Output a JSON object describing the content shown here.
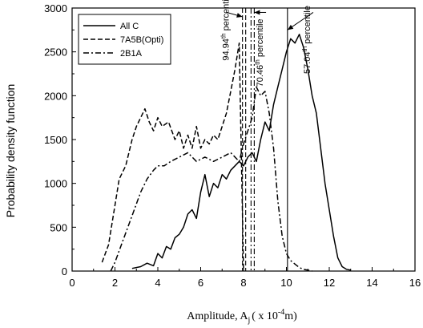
{
  "chart_data": {
    "type": "line",
    "xlabel": "Amplitude, A",
    "xlabel_sub": "j",
    "xlabel_unit": "( x 10",
    "xlabel_exp": "-4",
    "xlabel_tail": "m)",
    "ylabel": "Probability density function",
    "xlim": [
      0,
      16
    ],
    "ylim": [
      0,
      3000
    ],
    "xticks": [
      "0",
      "2",
      "4",
      "6",
      "8",
      "10",
      "12",
      "14",
      "16"
    ],
    "yticks": [
      "0",
      "500",
      "1000",
      "1500",
      "2000",
      "2500",
      "3000"
    ],
    "legend_position": "top-left",
    "series": [
      {
        "name": "All C",
        "dash": "solid",
        "x": [
          2.8,
          3.2,
          3.5,
          3.8,
          4.0,
          4.2,
          4.4,
          4.6,
          4.8,
          5.0,
          5.2,
          5.4,
          5.6,
          5.8,
          6.0,
          6.2,
          6.4,
          6.6,
          6.8,
          7.0,
          7.2,
          7.4,
          7.6,
          7.8,
          8.0,
          8.2,
          8.4,
          8.6,
          8.8,
          9.0,
          9.2,
          9.4,
          9.6,
          9.8,
          10.0,
          10.2,
          10.4,
          10.6,
          10.8,
          11.0,
          11.2,
          11.4,
          11.6,
          11.8,
          12.0,
          12.2,
          12.4,
          12.6,
          12.8,
          13.0
        ],
        "y": [
          30,
          50,
          90,
          60,
          200,
          150,
          280,
          250,
          380,
          420,
          500,
          650,
          700,
          600,
          900,
          1100,
          850,
          1000,
          950,
          1100,
          1050,
          1150,
          1200,
          1250,
          1200,
          1300,
          1350,
          1250,
          1500,
          1700,
          1600,
          1900,
          2100,
          2300,
          2500,
          2650,
          2600,
          2700,
          2550,
          2300,
          2000,
          1800,
          1400,
          1000,
          700,
          400,
          150,
          50,
          20,
          10
        ]
      },
      {
        "name": "7A5B(Opti)",
        "dash": "dashed",
        "x": [
          1.4,
          1.7,
          2.0,
          2.2,
          2.5,
          2.8,
          3.0,
          3.2,
          3.4,
          3.6,
          3.8,
          4.0,
          4.2,
          4.5,
          4.8,
          5.0,
          5.2,
          5.4,
          5.6,
          5.8,
          6.0,
          6.2,
          6.4,
          6.6,
          6.8,
          7.0,
          7.2,
          7.4,
          7.6,
          7.8,
          8.0
        ],
        "y": [
          100,
          300,
          750,
          1050,
          1200,
          1500,
          1650,
          1750,
          1850,
          1700,
          1600,
          1750,
          1650,
          1700,
          1500,
          1600,
          1400,
          1550,
          1400,
          1650,
          1400,
          1500,
          1450,
          1550,
          1500,
          1650,
          1800,
          2050,
          2300,
          2600,
          0
        ]
      },
      {
        "name": "2B1A",
        "dash": "dashdot",
        "x": [
          1.8,
          2.0,
          2.3,
          2.6,
          2.9,
          3.2,
          3.5,
          3.8,
          4.0,
          4.3,
          4.6,
          5.0,
          5.4,
          5.8,
          6.2,
          6.6,
          7.0,
          7.4,
          7.8,
          8.0,
          8.2,
          8.4,
          8.6,
          8.8,
          9.0,
          9.2,
          9.4,
          9.6,
          9.8,
          10.0,
          10.2,
          10.4,
          10.6,
          10.8,
          11.0,
          11.2
        ],
        "y": [
          0,
          100,
          300,
          500,
          700,
          900,
          1050,
          1150,
          1200,
          1200,
          1250,
          1300,
          1350,
          1250,
          1300,
          1250,
          1300,
          1350,
          1250,
          1450,
          1600,
          1750,
          2100,
          2000,
          2050,
          1800,
          1400,
          800,
          400,
          200,
          120,
          80,
          40,
          20,
          10,
          0
        ]
      }
    ],
    "vlines": [
      {
        "x": 7.95,
        "dash": "dashed"
      },
      {
        "x": 8.1,
        "dash": "dashed"
      },
      {
        "x": 8.35,
        "dash": "dashdot"
      },
      {
        "x": 8.5,
        "dash": "dashdot"
      },
      {
        "x": 10.05,
        "dash": "solid"
      }
    ],
    "annotations": [
      {
        "text": "94.94",
        "sup": "th",
        "tail": " percentile",
        "x": 7.3,
        "y": 2400,
        "arrow_to": [
          7.95,
          2900
        ]
      },
      {
        "text": "70.46",
        "sup": "th",
        "tail": " percentile",
        "x": 8.9,
        "y": 2100,
        "arrow_to": [
          8.5,
          2950
        ]
      },
      {
        "text": "57.04",
        "sup": "th",
        "tail": " percentile",
        "x": 11.1,
        "y": 2250,
        "arrow_to": [
          10.05,
          2750
        ]
      }
    ]
  }
}
